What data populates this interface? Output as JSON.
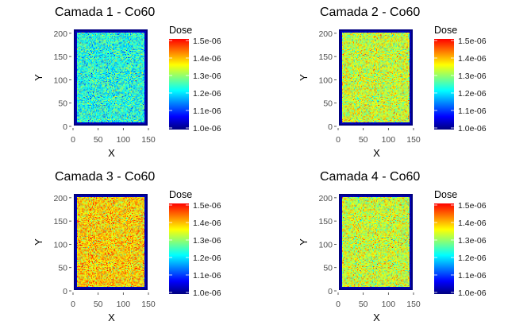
{
  "chart_data": [
    {
      "type": "heatmap",
      "title": "Camada 1 - Co60",
      "xlabel": "X",
      "ylabel": "Y",
      "xlim": [
        0,
        150
      ],
      "ylim": [
        0,
        210
      ],
      "xticks": [
        "0",
        "50",
        "100",
        "150"
      ],
      "yticks": [
        "0",
        "50",
        "100",
        "150",
        "200"
      ],
      "legend": {
        "title": "Dose",
        "labels": [
          "1.5e-06",
          "1.4e-06",
          "1.3e-06",
          "1.2e-06",
          "1.1e-06",
          "1.0e-06"
        ]
      },
      "color_range": [
        1e-06,
        1.5e-06
      ],
      "dose_distribution": {
        "mean": 1.23e-06,
        "spread": 5.5e-08
      },
      "grid": false
    },
    {
      "type": "heatmap",
      "title": "Camada 2 - Co60",
      "xlabel": "X",
      "ylabel": "Y",
      "xlim": [
        0,
        150
      ],
      "ylim": [
        0,
        210
      ],
      "xticks": [
        "0",
        "50",
        "100",
        "150"
      ],
      "yticks": [
        "0",
        "50",
        "100",
        "150",
        "200"
      ],
      "legend": {
        "title": "Dose",
        "labels": [
          "1.5e-06",
          "1.4e-06",
          "1.3e-06",
          "1.2e-06",
          "1.1e-06",
          "1.0e-06"
        ]
      },
      "color_range": [
        1e-06,
        1.5e-06
      ],
      "dose_distribution": {
        "mean": 1.33e-06,
        "spread": 5.5e-08
      },
      "grid": false
    },
    {
      "type": "heatmap",
      "title": "Camada 3 - Co60",
      "xlabel": "X",
      "ylabel": "Y",
      "xlim": [
        0,
        150
      ],
      "ylim": [
        0,
        210
      ],
      "xticks": [
        "0",
        "50",
        "100",
        "150"
      ],
      "yticks": [
        "0",
        "50",
        "100",
        "150",
        "200"
      ],
      "legend": {
        "title": "Dose",
        "labels": [
          "1.5e-06",
          "1.4e-06",
          "1.3e-06",
          "1.2e-06",
          "1.1e-06",
          "1.0e-06"
        ]
      },
      "color_range": [
        1e-06,
        1.5e-06
      ],
      "dose_distribution": {
        "mean": 1.38e-06,
        "spread": 5.5e-08
      },
      "grid": false
    },
    {
      "type": "heatmap",
      "title": "Camada 4 - Co60",
      "xlabel": "X",
      "ylabel": "Y",
      "xlim": [
        0,
        150
      ],
      "ylim": [
        0,
        210
      ],
      "xticks": [
        "0",
        "50",
        "100",
        "150"
      ],
      "yticks": [
        "0",
        "50",
        "100",
        "150",
        "200"
      ],
      "legend": {
        "title": "Dose",
        "labels": [
          "1.5e-06",
          "1.4e-06",
          "1.3e-06",
          "1.2e-06",
          "1.1e-06",
          "1.0e-06"
        ]
      },
      "color_range": [
        1e-06,
        1.5e-06
      ],
      "dose_distribution": {
        "mean": 1.33e-06,
        "spread": 5.5e-08
      },
      "grid": false
    }
  ],
  "colormap": [
    "#00007f",
    "#0000ff",
    "#007fff",
    "#00ffff",
    "#7fff7f",
    "#ffff00",
    "#ff7f00",
    "#ff0000"
  ]
}
